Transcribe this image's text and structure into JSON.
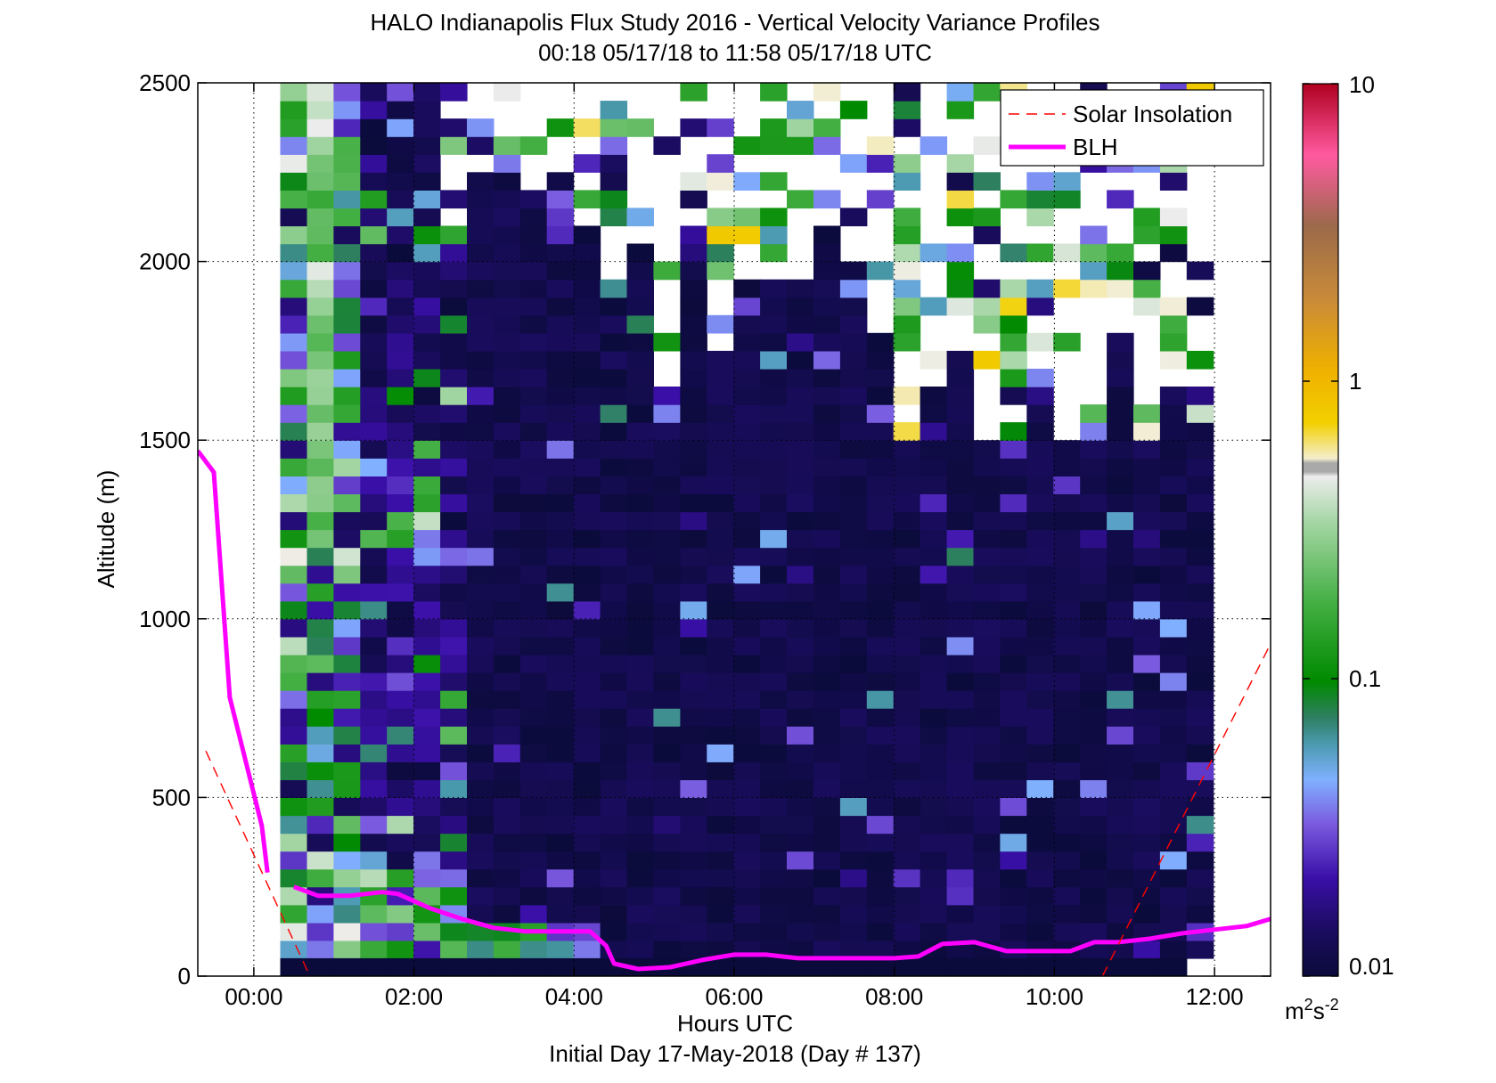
{
  "chart_data": {
    "type": "heatmap",
    "title": "HALO Indianapolis Flux Study 2016 - Vertical Velocity Variance Profiles",
    "subtitle": "00:18 05/17/18 to 11:58 05/17/18  UTC",
    "xlabel": "Hours UTC",
    "xlabel2": "Initial Day 17-May-2018 (Day # 137)",
    "ylabel": "Altitude (m)",
    "xlim": [
      -0.7,
      12.7
    ],
    "ylim": [
      0,
      2500
    ],
    "x_ticks": [
      0,
      2,
      4,
      6,
      8,
      10,
      12
    ],
    "x_tick_labels": [
      "00:00",
      "02:00",
      "04:00",
      "06:00",
      "08:00",
      "10:00",
      "12:00"
    ],
    "y_ticks": [
      0,
      500,
      1000,
      1500,
      2000,
      2500
    ],
    "y_tick_labels": [
      "0",
      "500",
      "1000",
      "1500",
      "2000",
      "2500"
    ],
    "grid": true,
    "legend_position": "top-right",
    "legend": [
      {
        "label": "Solar Insolation",
        "style": "dashed",
        "color": "#ff0000"
      },
      {
        "label": "BLH",
        "style": "solid",
        "color": "#ff00ff"
      }
    ],
    "colorbar": {
      "scale": "log",
      "min": 0.01,
      "max": 10,
      "ticks": [
        0.01,
        0.1,
        1,
        10
      ],
      "tick_labels": [
        "0.01",
        "0.1",
        "1",
        "10"
      ],
      "units_base": "m",
      "units_sup1": "2",
      "units_mid": "s",
      "units_sup2": "-2"
    },
    "variance_grid": {
      "time_start": 0.33,
      "time_step": 0.333,
      "n_cols": 35,
      "alt_start": 50,
      "alt_step": 50,
      "n_rows": 49,
      "description_levels": "log10 variance per cell, -2 = background"
    },
    "series": [
      {
        "name": "BLH",
        "x": [
          -0.7,
          -0.5,
          -0.3,
          -0.1,
          0.1,
          0.17
        ],
        "y": [
          1470,
          1410,
          780,
          600,
          420,
          290
        ]
      },
      {
        "name": "BLH",
        "x": [
          0.5,
          0.8,
          1.2,
          1.6,
          1.8,
          2.2,
          2.6,
          3.0,
          3.4,
          3.8,
          4.2,
          4.4,
          4.5,
          4.8,
          5.2,
          5.6,
          6.0,
          6.4,
          6.8,
          7.2,
          7.6,
          8.0,
          8.3,
          8.6,
          9.0,
          9.4,
          9.8,
          10.2,
          10.5,
          10.8,
          11.2,
          11.6,
          12.0,
          12.4,
          12.7
        ],
        "y": [
          250,
          225,
          225,
          235,
          230,
          190,
          160,
          135,
          125,
          125,
          125,
          85,
          35,
          20,
          25,
          45,
          60,
          60,
          50,
          50,
          50,
          50,
          55,
          90,
          95,
          70,
          70,
          70,
          95,
          95,
          105,
          120,
          130,
          140,
          160
        ]
      },
      {
        "name": "Solar Insolation",
        "x": [
          -0.6,
          0.7
        ],
        "y": [
          630,
          0
        ]
      },
      {
        "name": "Solar Insolation",
        "x": [
          10.6,
          12.7
        ],
        "y": [
          0,
          930
        ]
      }
    ]
  }
}
